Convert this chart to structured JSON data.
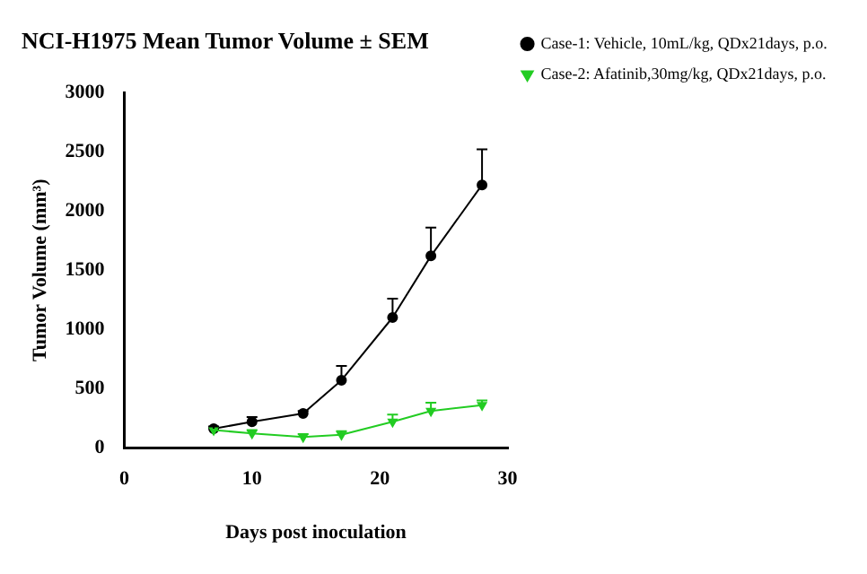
{
  "chart_data": {
    "type": "line",
    "title": "NCI-H1975 Mean Tumor Volume ± SEM",
    "xlabel": "Days post inoculation",
    "ylabel": "Tumor Volume (mm³)",
    "xlim": [
      0,
      30
    ],
    "xticks": [
      0,
      10,
      20,
      30
    ],
    "ylim": [
      0,
      3000
    ],
    "yticks": [
      0,
      500,
      1000,
      1500,
      2000,
      2500,
      3000
    ],
    "grid": false,
    "legend": "right",
    "series": [
      {
        "name": "Case-1: Vehicle, 10mL/kg, QDx21days, p.o.",
        "color": "#000000",
        "marker": "circle",
        "x": [
          7,
          10,
          14,
          17,
          21,
          24,
          28
        ],
        "values": [
          160,
          220,
          290,
          570,
          1100,
          1620,
          2220
        ],
        "errors": [
          [
            160,
            180
          ],
          [
            220,
            260
          ],
          [
            290,
            310
          ],
          [
            570,
            690
          ],
          [
            1100,
            1260
          ],
          [
            1620,
            1860
          ],
          [
            2220,
            2520
          ]
        ]
      },
      {
        "name": "Case-2: Afatinib,30mg/kg, QDx21days, p.o.",
        "color": "#22cc22",
        "marker": "triangle",
        "x": [
          7,
          10,
          14,
          17,
          21,
          24,
          28
        ],
        "values": [
          150,
          120,
          90,
          110,
          220,
          310,
          360
        ],
        "errors": [
          null,
          [
            120,
            150
          ],
          [
            90,
            115
          ],
          [
            110,
            140
          ],
          [
            220,
            280
          ],
          [
            310,
            380
          ],
          [
            360,
            400
          ]
        ]
      }
    ]
  }
}
